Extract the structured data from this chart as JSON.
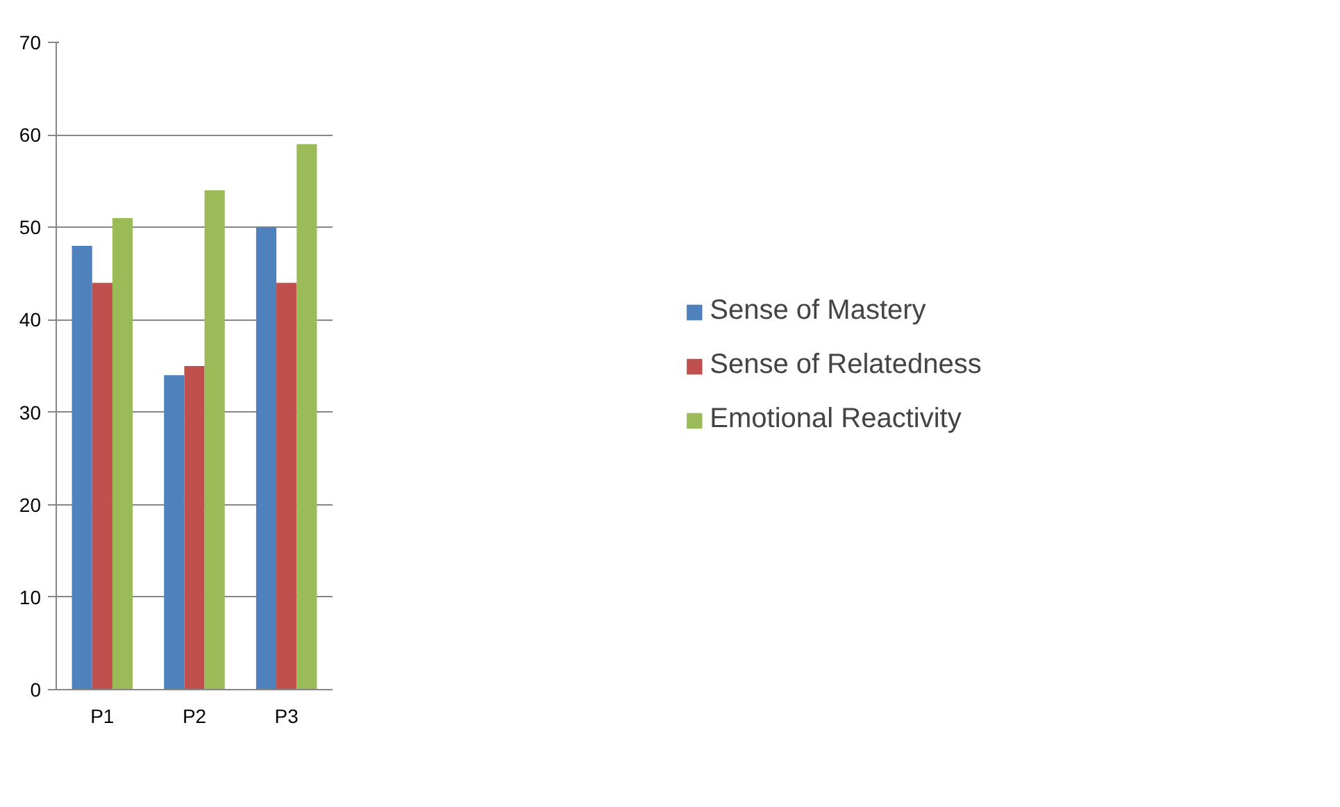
{
  "chart_data": {
    "type": "bar",
    "categories": [
      "P1",
      "P2",
      "P3"
    ],
    "series": [
      {
        "name": "Sense of Mastery",
        "color": "#4f81bd",
        "values": [
          48,
          34,
          50
        ]
      },
      {
        "name": "Sense of Relatedness",
        "color": "#c0504d",
        "values": [
          44,
          35,
          44
        ]
      },
      {
        "name": "Emotional Reactivity",
        "color": "#9bbb59",
        "values": [
          51,
          54,
          59
        ]
      }
    ],
    "ylim": [
      0,
      70
    ],
    "yticks": [
      0,
      10,
      20,
      30,
      40,
      50,
      60,
      70
    ],
    "grid": "y",
    "legend": "right"
  }
}
